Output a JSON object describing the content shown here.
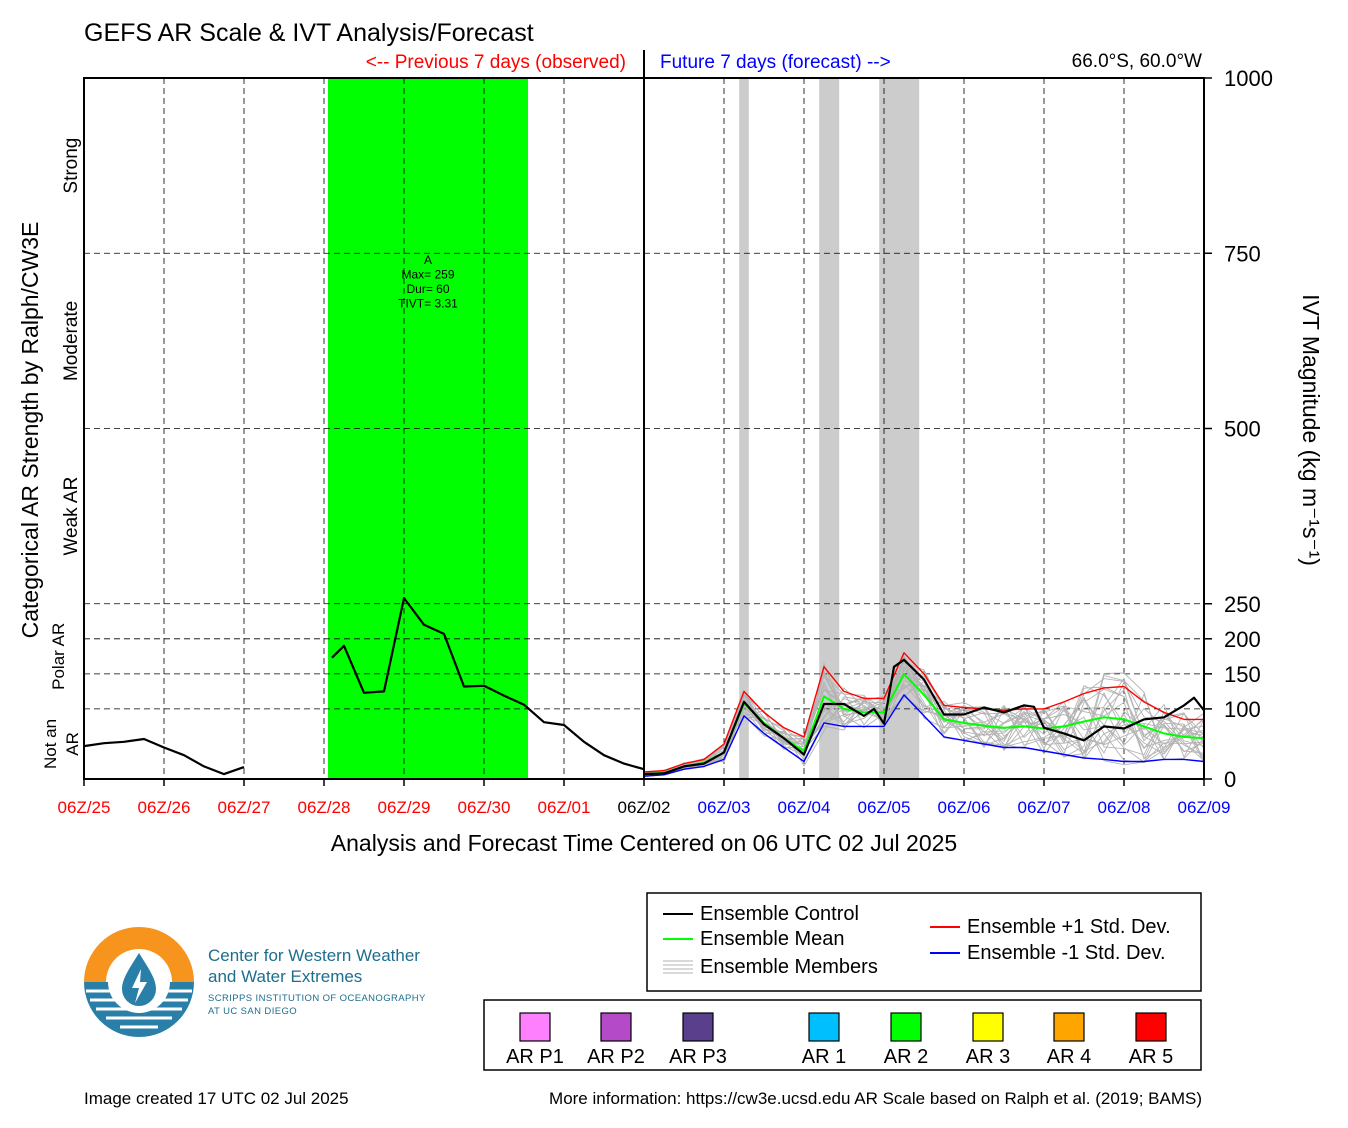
{
  "page": {
    "title": "GEFS AR Scale & IVT Analysis/Forecast",
    "prev_label": "<-- Previous 7 days (observed)",
    "future_label": "Future 7 days (forecast) -->",
    "location": "66.0°S, 60.0°W",
    "created": "Image created 17 UTC 02 Jul 2025",
    "more_info": "More information: https://cw3e.ucsd.edu AR Scale based on Ralph et al. (2019; BAMS)"
  },
  "colors": {
    "past": "#ff0000",
    "now": "#000000",
    "future": "#0000ff",
    "ar2": "#00ff00",
    "shade": "#cccccc",
    "logo_orange": "#f7941d",
    "logo_blue": "#2a7fa8",
    "logo_text": "#1c6e8c"
  },
  "logo": {
    "line1": "Center for Western Weather",
    "line2": "and Water Extremes",
    "line3": "SCRIPPS INSTITUTION OF OCEANOGRAPHY",
    "line4": "AT UC SAN DIEGO"
  },
  "chart_data": {
    "type": "line",
    "title": "GEFS AR Scale & IVT Analysis/Forecast",
    "xlabel": "Analysis and Forecast Time Centered on 06 UTC 02 Jul 2025",
    "ylabel_left": "Categorical AR Strength by Ralph/CW3E",
    "ylabel_right": "IVT Magnitude (kg m⁻¹s⁻¹)",
    "xlim": [
      0,
      14
    ],
    "ylim": [
      0,
      1000
    ],
    "grid": true,
    "x_ticks": [
      {
        "x": 0,
        "label": "06Z/25",
        "period": "past"
      },
      {
        "x": 1,
        "label": "06Z/26",
        "period": "past"
      },
      {
        "x": 2,
        "label": "06Z/27",
        "period": "past"
      },
      {
        "x": 3,
        "label": "06Z/28",
        "period": "past"
      },
      {
        "x": 4,
        "label": "06Z/29",
        "period": "past"
      },
      {
        "x": 5,
        "label": "06Z/30",
        "period": "past"
      },
      {
        "x": 6,
        "label": "06Z/01",
        "period": "past"
      },
      {
        "x": 7,
        "label": "06Z/02",
        "period": "now"
      },
      {
        "x": 8,
        "label": "06Z/03",
        "period": "future"
      },
      {
        "x": 9,
        "label": "06Z/04",
        "period": "future"
      },
      {
        "x": 10,
        "label": "06Z/05",
        "period": "future"
      },
      {
        "x": 11,
        "label": "06Z/06",
        "period": "future"
      },
      {
        "x": 12,
        "label": "06Z/07",
        "period": "future"
      },
      {
        "x": 13,
        "label": "06Z/08",
        "period": "future"
      },
      {
        "x": 14,
        "label": "06Z/09",
        "period": "future"
      }
    ],
    "y_ticks": [
      0,
      100,
      150,
      200,
      250,
      500,
      750,
      1000
    ],
    "categories": [
      {
        "label": "Strong",
        "low": 750,
        "high": 1000
      },
      {
        "label": "Moderate",
        "low": 500,
        "high": 750
      },
      {
        "label": "Weak AR",
        "low": 250,
        "high": 500
      },
      {
        "label": "Polar AR",
        "low": 100,
        "high": 250
      },
      {
        "label": "Not an AR",
        "low": 0,
        "high": 100
      }
    ],
    "ar_events": [
      {
        "start": 3.05,
        "end": 5.55,
        "category": "AR 2",
        "text": [
          "A",
          "Max= 259",
          "Dur= 60",
          "TIVT= 3.31"
        ]
      }
    ],
    "shaded_periods": [
      [
        8.19,
        8.31
      ],
      [
        9.19,
        9.44
      ],
      [
        9.94,
        10.44
      ]
    ],
    "series": [
      {
        "name": "Ensemble Control (observed)",
        "role": "observed",
        "color": "#000000",
        "points": [
          [
            0,
            47
          ],
          [
            0.25,
            51
          ],
          [
            0.5,
            53
          ],
          [
            0.75,
            57
          ],
          [
            1,
            45
          ],
          [
            1.25,
            34
          ],
          [
            1.5,
            18
          ],
          [
            1.75,
            7
          ],
          [
            2,
            17
          ]
        ]
      },
      {
        "name": "Ensemble Control (observed)",
        "role": "observed",
        "color": "#000000",
        "points": [
          [
            3.1,
            173
          ],
          [
            3.25,
            190
          ],
          [
            3.5,
            123
          ],
          [
            3.75,
            125
          ],
          [
            4,
            258
          ],
          [
            4.25,
            220
          ],
          [
            4.5,
            207
          ],
          [
            4.75,
            132
          ],
          [
            5,
            133
          ],
          [
            5.25,
            119
          ],
          [
            5.5,
            106
          ],
          [
            5.75,
            81
          ],
          [
            6,
            77
          ],
          [
            6.25,
            53
          ],
          [
            6.5,
            34
          ],
          [
            6.75,
            22
          ],
          [
            7,
            14
          ]
        ]
      },
      {
        "name": "Ensemble Control",
        "role": "control",
        "color": "#000000",
        "points": [
          [
            7,
            7
          ],
          [
            7.25,
            8
          ],
          [
            7.5,
            18
          ],
          [
            7.75,
            22
          ],
          [
            8,
            38
          ],
          [
            8.25,
            110
          ],
          [
            8.5,
            78
          ],
          [
            8.75,
            58
          ],
          [
            9,
            35
          ],
          [
            9.25,
            107
          ],
          [
            9.5,
            107
          ],
          [
            9.75,
            90
          ],
          [
            9.875,
            100
          ],
          [
            10,
            79
          ],
          [
            10.125,
            160
          ],
          [
            10.25,
            170
          ],
          [
            10.5,
            142
          ],
          [
            10.75,
            92
          ],
          [
            11,
            92
          ],
          [
            11.25,
            102
          ],
          [
            11.5,
            95
          ],
          [
            11.75,
            105
          ],
          [
            11.875,
            103
          ],
          [
            12,
            73
          ],
          [
            12.25,
            65
          ],
          [
            12.5,
            55
          ],
          [
            12.75,
            75
          ],
          [
            13,
            72
          ],
          [
            13.25,
            85
          ],
          [
            13.5,
            88
          ],
          [
            13.75,
            105
          ],
          [
            13.875,
            116
          ],
          [
            14,
            98
          ]
        ]
      },
      {
        "name": "Ensemble Mean",
        "role": "mean",
        "color": "#00ff00",
        "points": [
          [
            7,
            7
          ],
          [
            7.25,
            9
          ],
          [
            7.5,
            18
          ],
          [
            7.75,
            23
          ],
          [
            8,
            38
          ],
          [
            8.25,
            108
          ],
          [
            8.5,
            80
          ],
          [
            8.75,
            58
          ],
          [
            9,
            40
          ],
          [
            9.25,
            118
          ],
          [
            9.5,
            100
          ],
          [
            9.75,
            95
          ],
          [
            10,
            95
          ],
          [
            10.25,
            150
          ],
          [
            10.5,
            120
          ],
          [
            10.75,
            85
          ],
          [
            11,
            80
          ],
          [
            11.25,
            76
          ],
          [
            11.5,
            73
          ],
          [
            11.75,
            75
          ],
          [
            12,
            72
          ],
          [
            12.25,
            75
          ],
          [
            12.5,
            82
          ],
          [
            12.75,
            88
          ],
          [
            13,
            85
          ],
          [
            13.25,
            75
          ],
          [
            13.5,
            65
          ],
          [
            13.75,
            60
          ],
          [
            14,
            58
          ]
        ]
      },
      {
        "name": "Ensemble +1 Std. Dev.",
        "role": "plus",
        "color": "#ff0000",
        "points": [
          [
            7,
            10
          ],
          [
            7.25,
            12
          ],
          [
            7.5,
            22
          ],
          [
            7.75,
            28
          ],
          [
            8,
            50
          ],
          [
            8.25,
            125
          ],
          [
            8.5,
            95
          ],
          [
            8.75,
            73
          ],
          [
            9,
            60
          ],
          [
            9.25,
            160
          ],
          [
            9.5,
            125
          ],
          [
            9.75,
            115
          ],
          [
            10,
            115
          ],
          [
            10.25,
            180
          ],
          [
            10.5,
            150
          ],
          [
            10.75,
            105
          ],
          [
            11,
            102
          ],
          [
            11.25,
            100
          ],
          [
            11.5,
            98
          ],
          [
            11.75,
            100
          ],
          [
            12,
            100
          ],
          [
            12.25,
            110
          ],
          [
            12.5,
            122
          ],
          [
            12.75,
            130
          ],
          [
            13,
            132
          ],
          [
            13.25,
            110
          ],
          [
            13.5,
            95
          ],
          [
            13.75,
            85
          ],
          [
            14,
            85
          ]
        ]
      },
      {
        "name": "Ensemble -1 Std. Dev.",
        "role": "minus",
        "color": "#0000ff",
        "points": [
          [
            7,
            4
          ],
          [
            7.25,
            6
          ],
          [
            7.5,
            14
          ],
          [
            7.75,
            18
          ],
          [
            8,
            28
          ],
          [
            8.25,
            90
          ],
          [
            8.5,
            65
          ],
          [
            8.75,
            45
          ],
          [
            9,
            25
          ],
          [
            9.25,
            80
          ],
          [
            9.5,
            75
          ],
          [
            9.75,
            75
          ],
          [
            10,
            75
          ],
          [
            10.25,
            120
          ],
          [
            10.5,
            90
          ],
          [
            10.75,
            60
          ],
          [
            11,
            55
          ],
          [
            11.25,
            50
          ],
          [
            11.5,
            45
          ],
          [
            11.75,
            45
          ],
          [
            12,
            40
          ],
          [
            12.25,
            35
          ],
          [
            12.5,
            30
          ],
          [
            12.75,
            28
          ],
          [
            13,
            25
          ],
          [
            13.25,
            25
          ],
          [
            13.5,
            28
          ],
          [
            13.75,
            28
          ],
          [
            14,
            25
          ]
        ]
      }
    ],
    "legend": {
      "placement": "bottom-right",
      "entries": [
        {
          "label": "Ensemble Control",
          "color": "#000000"
        },
        {
          "label": "Ensemble Mean",
          "color": "#00ff00"
        },
        {
          "label": "Ensemble Members",
          "color": "#b3b3b3"
        },
        {
          "label": "Ensemble +1 Std. Dev.",
          "color": "#ff0000"
        },
        {
          "label": "Ensemble -1 Std. Dev.",
          "color": "#0000ff"
        }
      ]
    },
    "ar_scale_legend": [
      {
        "label": "AR P1",
        "color": "#ff80ff"
      },
      {
        "label": "AR P2",
        "color": "#b44ac8"
      },
      {
        "label": "AR P3",
        "color": "#5a3f8c"
      },
      {
        "label": "AR 1",
        "color": "#00bfff"
      },
      {
        "label": "AR 2",
        "color": "#00ff00"
      },
      {
        "label": "AR 3",
        "color": "#ffff00"
      },
      {
        "label": "AR 4",
        "color": "#ffa500"
      },
      {
        "label": "AR 5",
        "color": "#ff0000"
      }
    ]
  }
}
